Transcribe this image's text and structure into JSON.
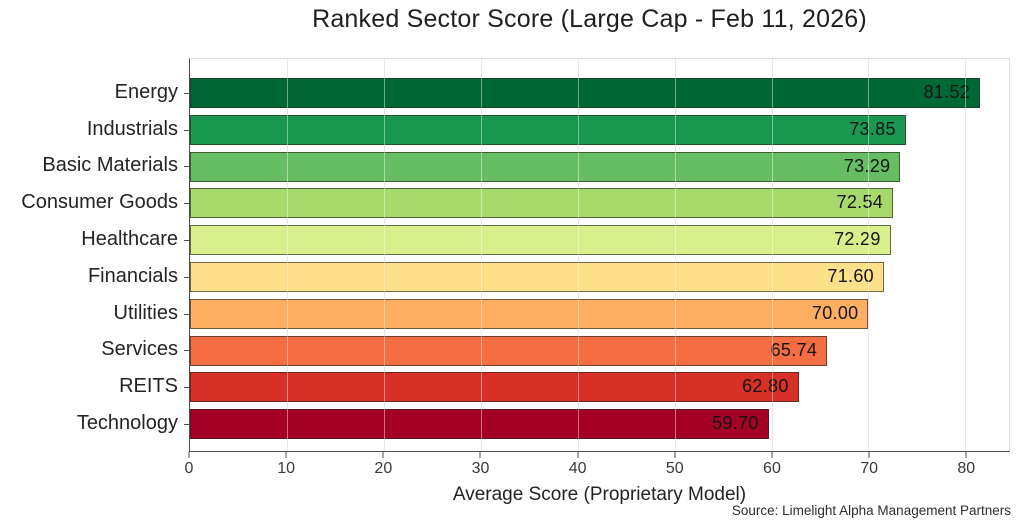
{
  "chart_data": {
    "type": "bar",
    "orientation": "horizontal",
    "title": "Ranked Sector Score (Large Cap - Feb 11, 2026)",
    "xlabel": "Average Score (Proprietary Model)",
    "source": "Source: Limelight Alpha Management Partners",
    "categories": [
      "Energy",
      "Industrials",
      "Basic Materials",
      "Consumer Goods",
      "Healthcare",
      "Financials",
      "Utilities",
      "Services",
      "REITS",
      "Technology"
    ],
    "values": [
      81.52,
      73.85,
      73.29,
      72.54,
      72.29,
      71.6,
      70.0,
      65.74,
      62.8,
      59.7
    ],
    "value_labels": [
      "81.52",
      "73.85",
      "73.29",
      "72.54",
      "72.29",
      "71.60",
      "70.00",
      "65.74",
      "62.80",
      "59.70"
    ],
    "bar_colors": [
      "#006837",
      "#1a9850",
      "#66bd63",
      "#a6d96a",
      "#d9ef8b",
      "#fee08b",
      "#fdae61",
      "#f46d43",
      "#d73027",
      "#a50026"
    ],
    "bar_edge_color": "#2a2a1e",
    "xlim": [
      0,
      84.5
    ],
    "xticks": [
      0,
      10,
      20,
      30,
      40,
      50,
      60,
      70,
      80
    ],
    "grid": true,
    "gridline_color": "#d7d7d7",
    "legend": false,
    "background_color": "#ffffff"
  }
}
